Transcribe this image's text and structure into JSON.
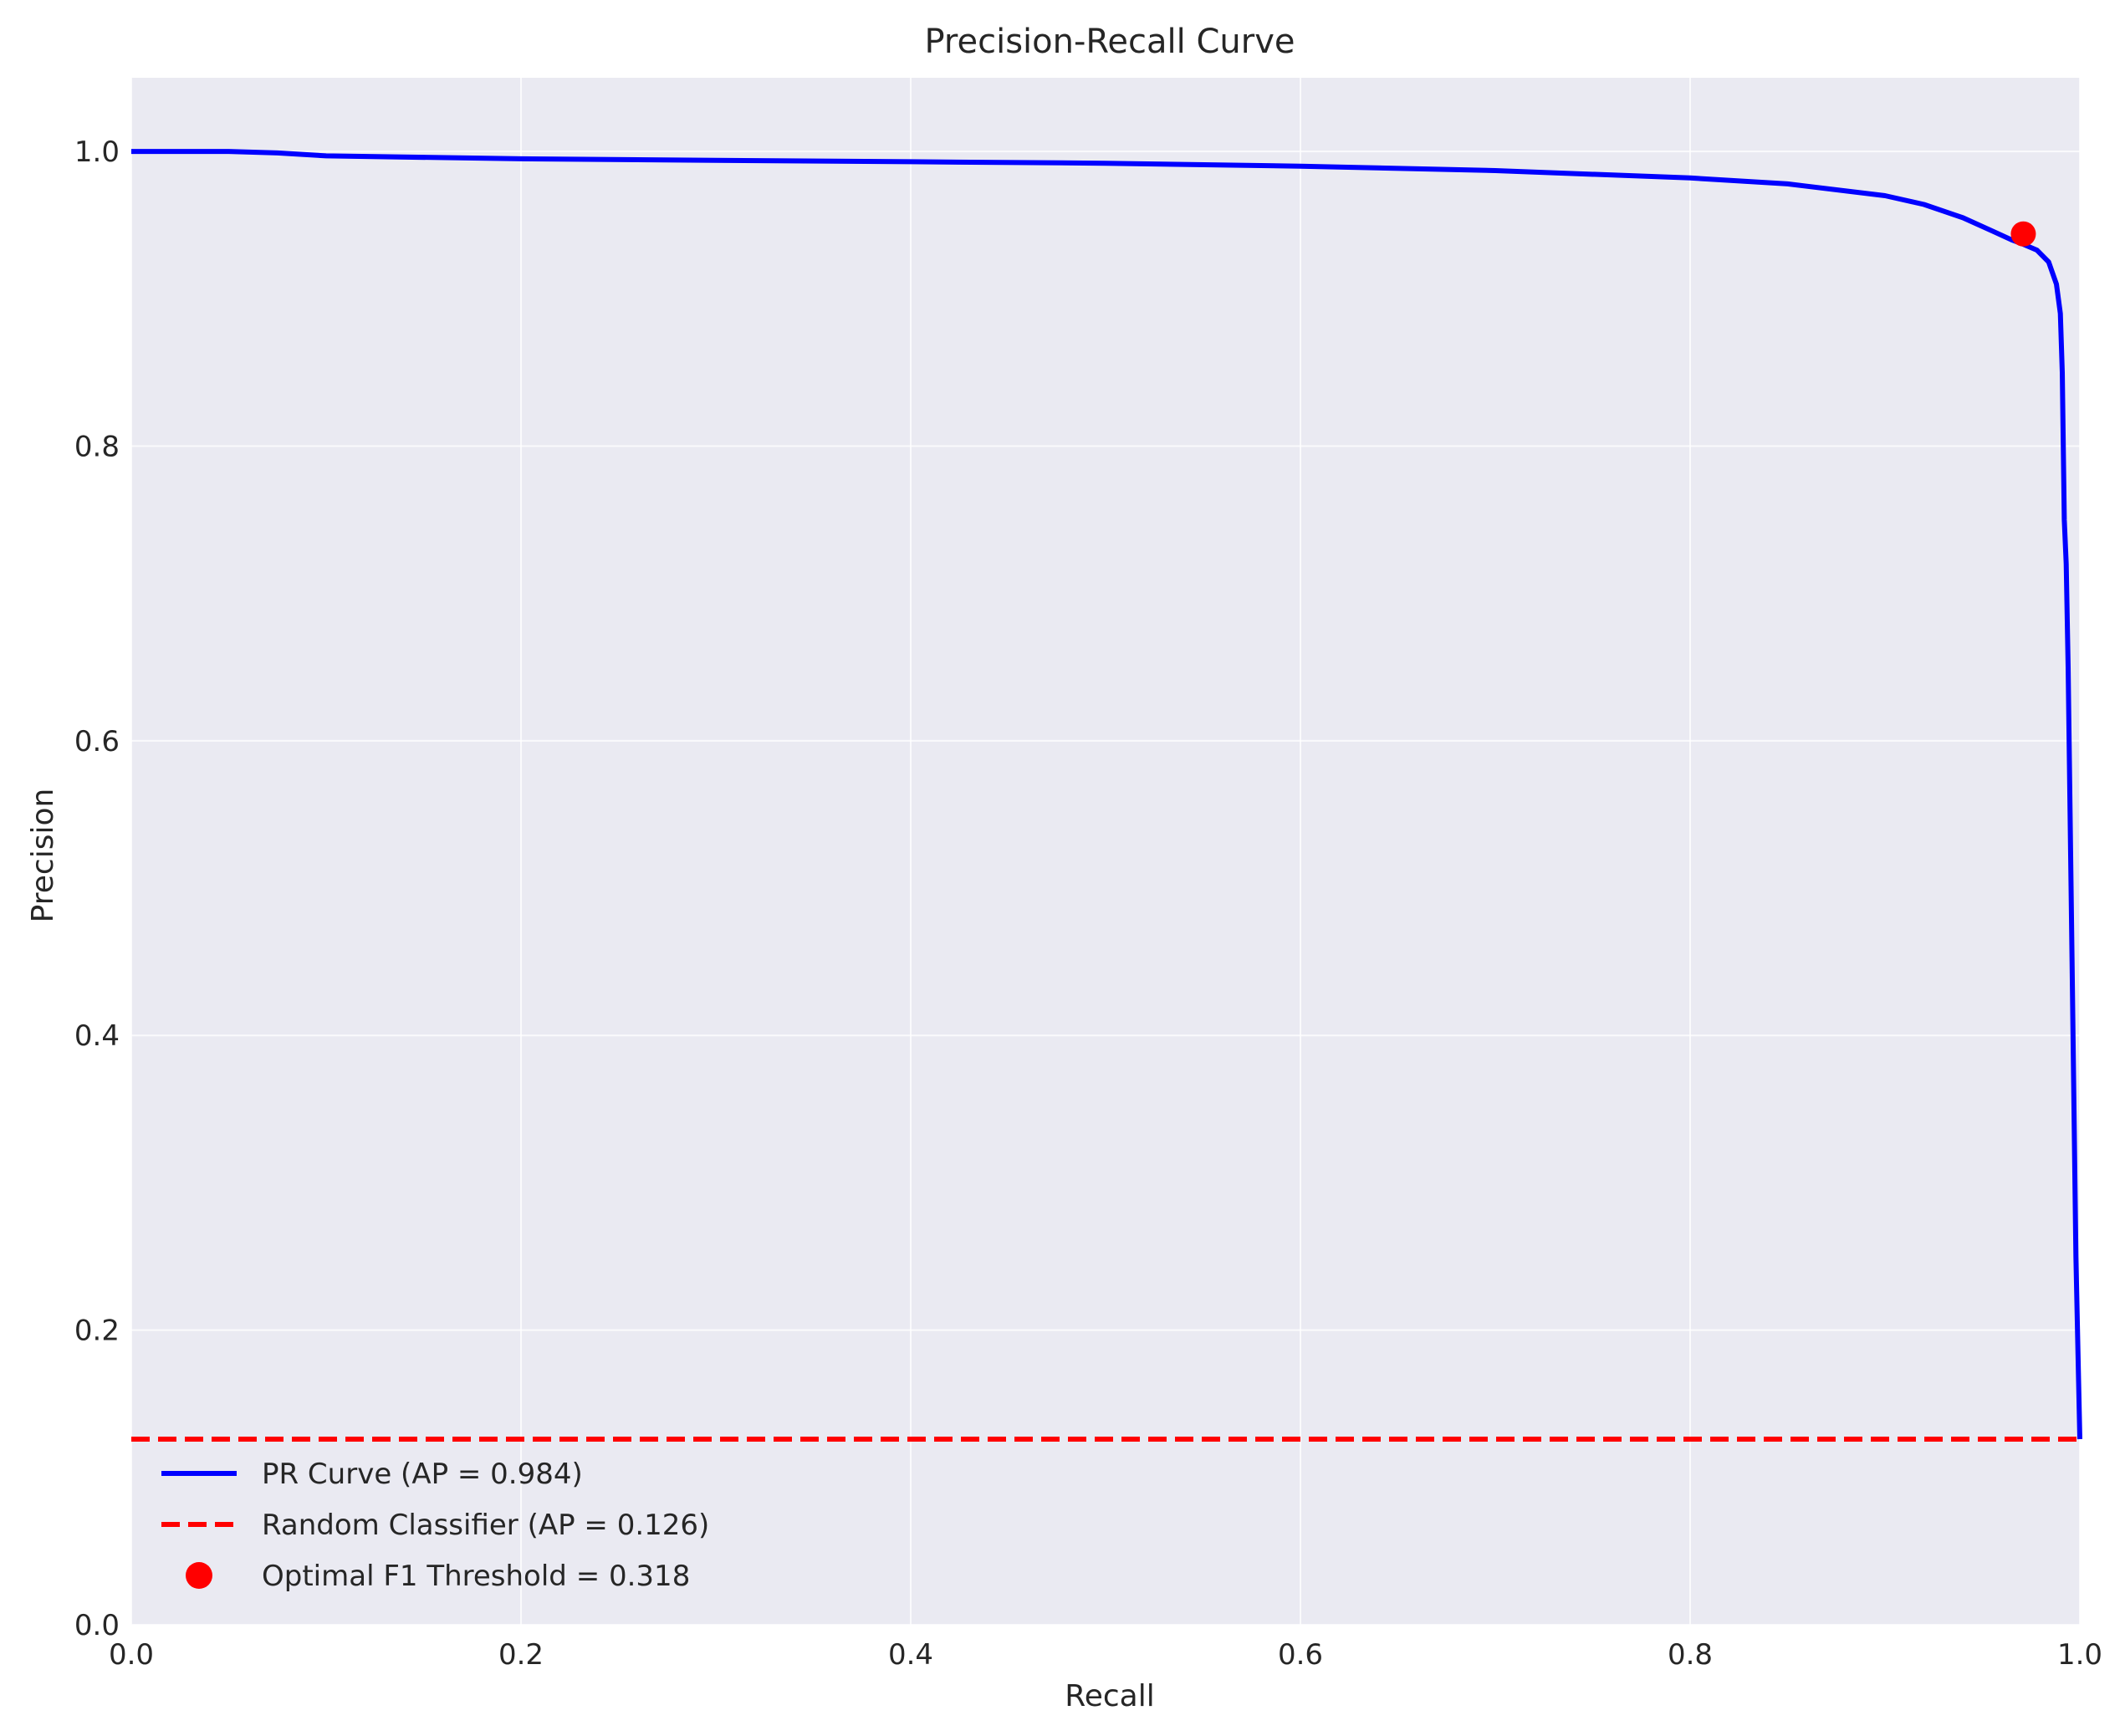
{
  "chart_data": {
    "type": "line",
    "title": "Precision-Recall Curve",
    "xlabel": "Recall",
    "ylabel": "Precision",
    "xlim": [
      0.0,
      1.0
    ],
    "ylim": [
      0.0,
      1.05
    ],
    "xticks": [
      0.0,
      0.2,
      0.4,
      0.6,
      0.8,
      1.0
    ],
    "xtick_labels": [
      "0.0",
      "0.2",
      "0.4",
      "0.6",
      "0.8",
      "1.0"
    ],
    "yticks": [
      0.0,
      0.2,
      0.4,
      0.6,
      0.8,
      1.0
    ],
    "ytick_labels": [
      "0.0",
      "0.2",
      "0.4",
      "0.6",
      "0.8",
      "1.0"
    ],
    "grid": true,
    "legend_position": "lower-left",
    "background_color": "#eaeaf2",
    "series": [
      {
        "name": "PR Curve (AP = 0.984)",
        "style": "solid",
        "color": "#0000ff",
        "x": [
          0.0,
          0.05,
          0.075,
          0.1,
          0.2,
          0.3,
          0.4,
          0.5,
          0.6,
          0.7,
          0.8,
          0.85,
          0.9,
          0.92,
          0.94,
          0.955,
          0.965,
          0.971,
          0.978,
          0.984,
          0.988,
          0.99,
          0.991,
          0.992,
          0.993,
          0.994,
          0.996,
          0.998,
          1.0
        ],
        "y": [
          1.0,
          1.0,
          0.999,
          0.997,
          0.995,
          0.994,
          0.993,
          0.992,
          0.99,
          0.987,
          0.982,
          0.978,
          0.97,
          0.964,
          0.955,
          0.946,
          0.94,
          0.937,
          0.933,
          0.925,
          0.91,
          0.89,
          0.85,
          0.75,
          0.72,
          0.65,
          0.45,
          0.25,
          0.126
        ]
      },
      {
        "name": "Random Classifier (AP = 0.126)",
        "style": "dashed",
        "color": "#ff0000",
        "x": [
          0.0,
          1.0
        ],
        "y": [
          0.126,
          0.126
        ]
      }
    ],
    "markers": [
      {
        "name": "Optimal F1 Threshold = 0.318",
        "color": "#ff0000",
        "x": 0.971,
        "y": 0.944
      }
    ]
  }
}
